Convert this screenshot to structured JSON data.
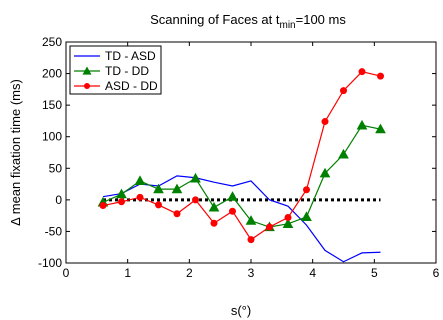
{
  "chart_data": {
    "type": "line",
    "title": "Scanning of Faces at t",
    "title_sub": "min",
    "title_tail": "=100 ms",
    "xlabel": "s(°)",
    "ylabel": "Δ mean fixation time (ms)",
    "xlim": [
      0,
      6
    ],
    "ylim": [
      -100,
      250
    ],
    "xticks": [
      0,
      1,
      2,
      3,
      4,
      5,
      6
    ],
    "yticks": [
      -100,
      -50,
      0,
      50,
      100,
      150,
      200,
      250
    ],
    "grid": false,
    "legend_position": "top-left",
    "reference_line": {
      "y": 0,
      "x_from": 0.6,
      "x_to": 5.1,
      "style": "dotted",
      "color": "#000000"
    },
    "series": [
      {
        "name": "TD - ASD",
        "color": "#0000ff",
        "marker": "none",
        "x": [
          0.6,
          0.9,
          1.2,
          1.5,
          1.8,
          2.1,
          2.4,
          2.7,
          3.0,
          3.3,
          3.6,
          3.9,
          4.2,
          4.5,
          4.8,
          5.1
        ],
        "y": [
          5,
          10,
          25,
          22,
          38,
          35,
          28,
          22,
          30,
          0,
          -10,
          -40,
          -80,
          -98,
          -84,
          -83
        ]
      },
      {
        "name": "TD - DD",
        "color": "#008000",
        "marker": "triangle",
        "x": [
          0.6,
          0.9,
          1.2,
          1.5,
          1.8,
          2.1,
          2.4,
          2.7,
          3.0,
          3.3,
          3.6,
          3.9,
          4.2,
          4.5,
          4.8,
          5.1
        ],
        "y": [
          -4,
          9,
          30,
          17,
          17,
          34,
          -12,
          5,
          -33,
          -43,
          -38,
          -27,
          42,
          72,
          118,
          112
        ]
      },
      {
        "name": "ASD - DD",
        "color": "#ff0000",
        "marker": "circle",
        "x": [
          0.6,
          0.9,
          1.2,
          1.5,
          1.8,
          2.1,
          2.4,
          2.7,
          3.0,
          3.3,
          3.6,
          3.9,
          4.2,
          4.5,
          4.8,
          5.1
        ],
        "y": [
          -9,
          -3,
          4,
          -8,
          -22,
          0,
          -37,
          -18,
          -63,
          -43,
          -28,
          16,
          124,
          173,
          203,
          196
        ]
      }
    ]
  }
}
